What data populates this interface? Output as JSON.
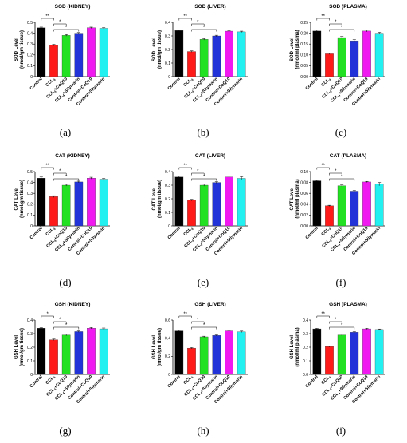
{
  "colors": [
    "#000000",
    "#ff1a1a",
    "#22e022",
    "#2233d8",
    "#f01af0",
    "#22f0f0"
  ],
  "panel_labels": [
    "(a)",
    "(b)",
    "(c)",
    "(d)",
    "(e)",
    "(f)",
    "(g)",
    "(h)",
    "(i)"
  ],
  "chart_data": [
    {
      "type": "bar",
      "title": "SOD (KIDNEY)",
      "ylabel": [
        "SOD Level",
        "(nmol/gm tissue)"
      ],
      "categories": [
        "Control",
        "CCL4",
        "CCL4+CoQ10",
        "CCL4+Silymarin",
        "Control+CoQ10",
        "Control+Silymarin"
      ],
      "values": [
        0.45,
        0.29,
        0.38,
        0.4,
        0.45,
        0.445
      ],
      "errors": [
        0.006,
        0.007,
        0.007,
        0.006,
        0.006,
        0.006
      ],
      "ylim": [
        0,
        0.5
      ],
      "yticks": [
        "0",
        "0.1",
        "0.2",
        "0.3",
        "0.4",
        "0.5"
      ],
      "significance": [
        {
          "from": 0,
          "to": 1,
          "label": "**"
        },
        {
          "from": 1,
          "to": 2,
          "label": "*"
        },
        {
          "from": 1,
          "to": 3,
          "label": "*"
        }
      ]
    },
    {
      "type": "bar",
      "title": "SOD (LIVER)",
      "ylabel": [
        "SOD Level",
        "(nmol/gm tissue)"
      ],
      "categories": [
        "Control",
        "CCL4",
        "CCL4+CoQ10",
        "CCL4+Silymarin",
        "Control+CoQ10",
        "Control+Silymarin"
      ],
      "values": [
        0.34,
        0.185,
        0.275,
        0.3,
        0.335,
        0.33
      ],
      "errors": [
        0.005,
        0.005,
        0.005,
        0.005,
        0.005,
        0.005
      ],
      "ylim": [
        0,
        0.4
      ],
      "yticks": [
        "0",
        "0.1",
        "0.2",
        "0.3",
        "0.4"
      ],
      "significance": [
        {
          "from": 0,
          "to": 1,
          "label": "**"
        },
        {
          "from": 1,
          "to": 2,
          "label": "*"
        },
        {
          "from": 1,
          "to": 3,
          "label": "*"
        }
      ]
    },
    {
      "type": "bar",
      "title": "SOD (PLASMA)",
      "ylabel": [
        "SOD Level",
        "(nmol/ml plasma)"
      ],
      "categories": [
        "Control",
        "CCL4",
        "CCL4+CoQ10",
        "CCL4+Silymarin",
        "Control+CoQ10",
        "Control+Silymarin"
      ],
      "values": [
        0.21,
        0.105,
        0.18,
        0.165,
        0.21,
        0.2
      ],
      "errors": [
        0.004,
        0.003,
        0.005,
        0.005,
        0.004,
        0.004
      ],
      "ylim": [
        0,
        0.25
      ],
      "yticks": [
        "0.00",
        "0.05",
        "0.10",
        "0.15",
        "0.20",
        "0.25"
      ],
      "significance": [
        {
          "from": 0,
          "to": 1,
          "label": "**"
        },
        {
          "from": 1,
          "to": 2,
          "label": "*"
        },
        {
          "from": 1,
          "to": 3,
          "label": "*"
        }
      ]
    },
    {
      "type": "bar",
      "title": "CAT (KIDNEY)",
      "ylabel": [
        "CAT Level",
        "(nmol/gm tissue)"
      ],
      "categories": [
        "Control",
        "CCL4",
        "CCL4+CoQ10",
        "CCL4+Silymarin",
        "Control+CoQ10",
        "Control+Silymarin"
      ],
      "values": [
        0.44,
        0.27,
        0.375,
        0.405,
        0.44,
        0.43
      ],
      "errors": [
        0.01,
        0.008,
        0.008,
        0.007,
        0.008,
        0.008
      ],
      "ylim": [
        0,
        0.5
      ],
      "yticks": [
        "0",
        "0.1",
        "0.2",
        "0.3",
        "0.4",
        "0.5"
      ],
      "significance": [
        {
          "from": 0,
          "to": 1,
          "label": "**"
        },
        {
          "from": 1,
          "to": 2,
          "label": "*"
        },
        {
          "from": 1,
          "to": 3,
          "label": "*"
        }
      ]
    },
    {
      "type": "bar",
      "title": "CAT (LIVER)",
      "ylabel": [
        "CAT Level",
        "(nmol/gm tissue)"
      ],
      "categories": [
        "Control",
        "CCL4",
        "CCL4+CoQ10",
        "CCL4+Silymarin",
        "Control+CoQ10",
        "Control+Silymarin"
      ],
      "values": [
        0.36,
        0.19,
        0.3,
        0.32,
        0.36,
        0.35
      ],
      "errors": [
        0.006,
        0.006,
        0.007,
        0.006,
        0.006,
        0.012
      ],
      "ylim": [
        0,
        0.4
      ],
      "yticks": [
        "0",
        "0.1",
        "0.2",
        "0.3",
        "0.4"
      ],
      "significance": [
        {
          "from": 0,
          "to": 1,
          "label": "**"
        },
        {
          "from": 1,
          "to": 2,
          "label": "*"
        },
        {
          "from": 1,
          "to": 3,
          "label": "*"
        }
      ]
    },
    {
      "type": "bar",
      "title": "CAT (PLASMA)",
      "ylabel": [
        "CAT Level",
        "(nmol/ml plasma)"
      ],
      "categories": [
        "Control",
        "CCL4",
        "CCL4+CoQ10",
        "CCL4+Silymarin",
        "Control+CoQ10",
        "Control+Silymarin"
      ],
      "values": [
        0.083,
        0.037,
        0.074,
        0.064,
        0.081,
        0.077
      ],
      "errors": [
        0.001,
        0.001,
        0.0015,
        0.0015,
        0.001,
        0.003
      ],
      "ylim": [
        0,
        0.1
      ],
      "yticks": [
        "0.00",
        "0.02",
        "0.04",
        "0.06",
        "0.08",
        "0.10"
      ],
      "significance": [
        {
          "from": 0,
          "to": 1,
          "label": "**"
        },
        {
          "from": 1,
          "to": 2,
          "label": "*"
        },
        {
          "from": 1,
          "to": 3,
          "label": "*"
        }
      ]
    },
    {
      "type": "bar",
      "title": "GSH (KIDNEY)",
      "ylabel": [
        "GSH Level",
        "(nmol/gm tissue)"
      ],
      "categories": [
        "Control",
        "CCL4",
        "CCL4+CoQ10",
        "CCL4+Silymarin",
        "Control+CoQ10",
        "Control+Silymarin"
      ],
      "values": [
        0.34,
        0.255,
        0.29,
        0.315,
        0.34,
        0.335
      ],
      "errors": [
        0.005,
        0.005,
        0.006,
        0.005,
        0.005,
        0.006
      ],
      "ylim": [
        0,
        0.4
      ],
      "yticks": [
        "0",
        "0.1",
        "0.2",
        "0.3",
        "0.4"
      ],
      "significance": [
        {
          "from": 0,
          "to": 1,
          "label": "*"
        },
        {
          "from": 1,
          "to": 2,
          "label": "*"
        },
        {
          "from": 1,
          "to": 3,
          "label": "*"
        }
      ]
    },
    {
      "type": "bar",
      "title": "GSH (LIVER)",
      "ylabel": [
        "GSH Level",
        "(nmol/gm tissue)"
      ],
      "categories": [
        "Control",
        "CCL4",
        "CCL4+CoQ10",
        "CCL4+Silymarin",
        "Control+CoQ10",
        "Control+Silymarin"
      ],
      "values": [
        0.48,
        0.29,
        0.415,
        0.43,
        0.48,
        0.47
      ],
      "errors": [
        0.007,
        0.006,
        0.007,
        0.006,
        0.006,
        0.008
      ],
      "ylim": [
        0,
        0.6
      ],
      "yticks": [
        "0",
        "0.2",
        "0.4",
        "0.6"
      ],
      "significance": [
        {
          "from": 0,
          "to": 1,
          "label": "**"
        },
        {
          "from": 1,
          "to": 2,
          "label": "*"
        },
        {
          "from": 1,
          "to": 3,
          "label": "*"
        }
      ]
    },
    {
      "type": "bar",
      "title": "GSH (PLASMA)",
      "ylabel": [
        "GSH Level",
        "(nmol/ml plasma)"
      ],
      "categories": [
        "Control",
        "CCL4",
        "CCL4+CoQ10",
        "CCL4+Silymarin",
        "Control+CoQ10",
        "Control+Silymarin"
      ],
      "values": [
        0.335,
        0.205,
        0.29,
        0.31,
        0.335,
        0.33
      ],
      "errors": [
        0.004,
        0.004,
        0.008,
        0.006,
        0.004,
        0.004
      ],
      "ylim": [
        0,
        0.4
      ],
      "yticks": [
        "0.0",
        "0.1",
        "0.2",
        "0.3",
        "0.4"
      ],
      "significance": [
        {
          "from": 0,
          "to": 1,
          "label": "**"
        },
        {
          "from": 1,
          "to": 2,
          "label": "*"
        },
        {
          "from": 1,
          "to": 3,
          "label": "*"
        }
      ]
    }
  ]
}
